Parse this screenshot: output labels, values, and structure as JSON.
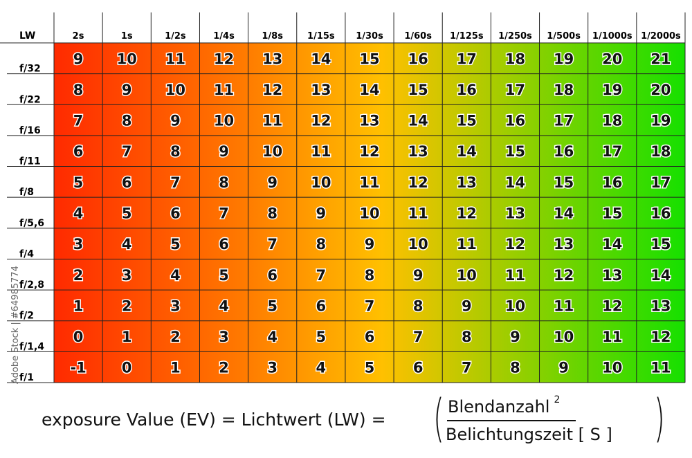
{
  "chart_data": {
    "type": "heatmap",
    "corner_label": "LW",
    "columns": [
      "2s",
      "1s",
      "1/2s",
      "1/4s",
      "1/8s",
      "1/15s",
      "1/30s",
      "1/60s",
      "1/125s",
      "1/250s",
      "1/500s",
      "1/1000s",
      "1/2000s"
    ],
    "rows": [
      "f/32",
      "f/22",
      "f/16",
      "f/11",
      "f/8",
      "f/5,6",
      "f/4",
      "f/2,8",
      "f/2",
      "f/1,4",
      "f/1"
    ],
    "values": [
      [
        9,
        10,
        11,
        12,
        13,
        14,
        15,
        16,
        17,
        18,
        19,
        20,
        21
      ],
      [
        8,
        9,
        10,
        11,
        12,
        13,
        14,
        15,
        16,
        17,
        18,
        19,
        20
      ],
      [
        7,
        8,
        9,
        10,
        11,
        12,
        13,
        14,
        15,
        16,
        17,
        18,
        19
      ],
      [
        6,
        7,
        8,
        9,
        10,
        11,
        12,
        13,
        14,
        15,
        16,
        17,
        18
      ],
      [
        5,
        6,
        7,
        8,
        9,
        10,
        11,
        12,
        13,
        14,
        15,
        16,
        17
      ],
      [
        4,
        5,
        6,
        7,
        8,
        9,
        10,
        11,
        12,
        13,
        14,
        15,
        16
      ],
      [
        3,
        4,
        5,
        6,
        7,
        8,
        9,
        10,
        11,
        12,
        13,
        14,
        15
      ],
      [
        2,
        3,
        4,
        5,
        6,
        7,
        8,
        9,
        10,
        11,
        12,
        13,
        14
      ],
      [
        1,
        2,
        3,
        4,
        5,
        6,
        7,
        8,
        9,
        10,
        11,
        12,
        13
      ],
      [
        0,
        1,
        2,
        3,
        4,
        5,
        6,
        7,
        8,
        9,
        10,
        11,
        12
      ],
      [
        -1,
        0,
        1,
        2,
        3,
        4,
        5,
        6,
        7,
        8,
        9,
        10,
        11
      ]
    ],
    "colors": {
      "low": "#ff2a00",
      "mid_low": "#ff7a00",
      "mid": "#ffc000",
      "high": "#16e000"
    }
  },
  "formula": {
    "lhs": "exposure Value (EV) = Lichtwert (LW) =",
    "open_paren": "(",
    "numerator": "Blendanzahl",
    "exponent": "2",
    "denominator": "Belichtungszeit [ S ]",
    "close_paren": ")"
  },
  "watermark": "Adobe Stock | #64985774"
}
